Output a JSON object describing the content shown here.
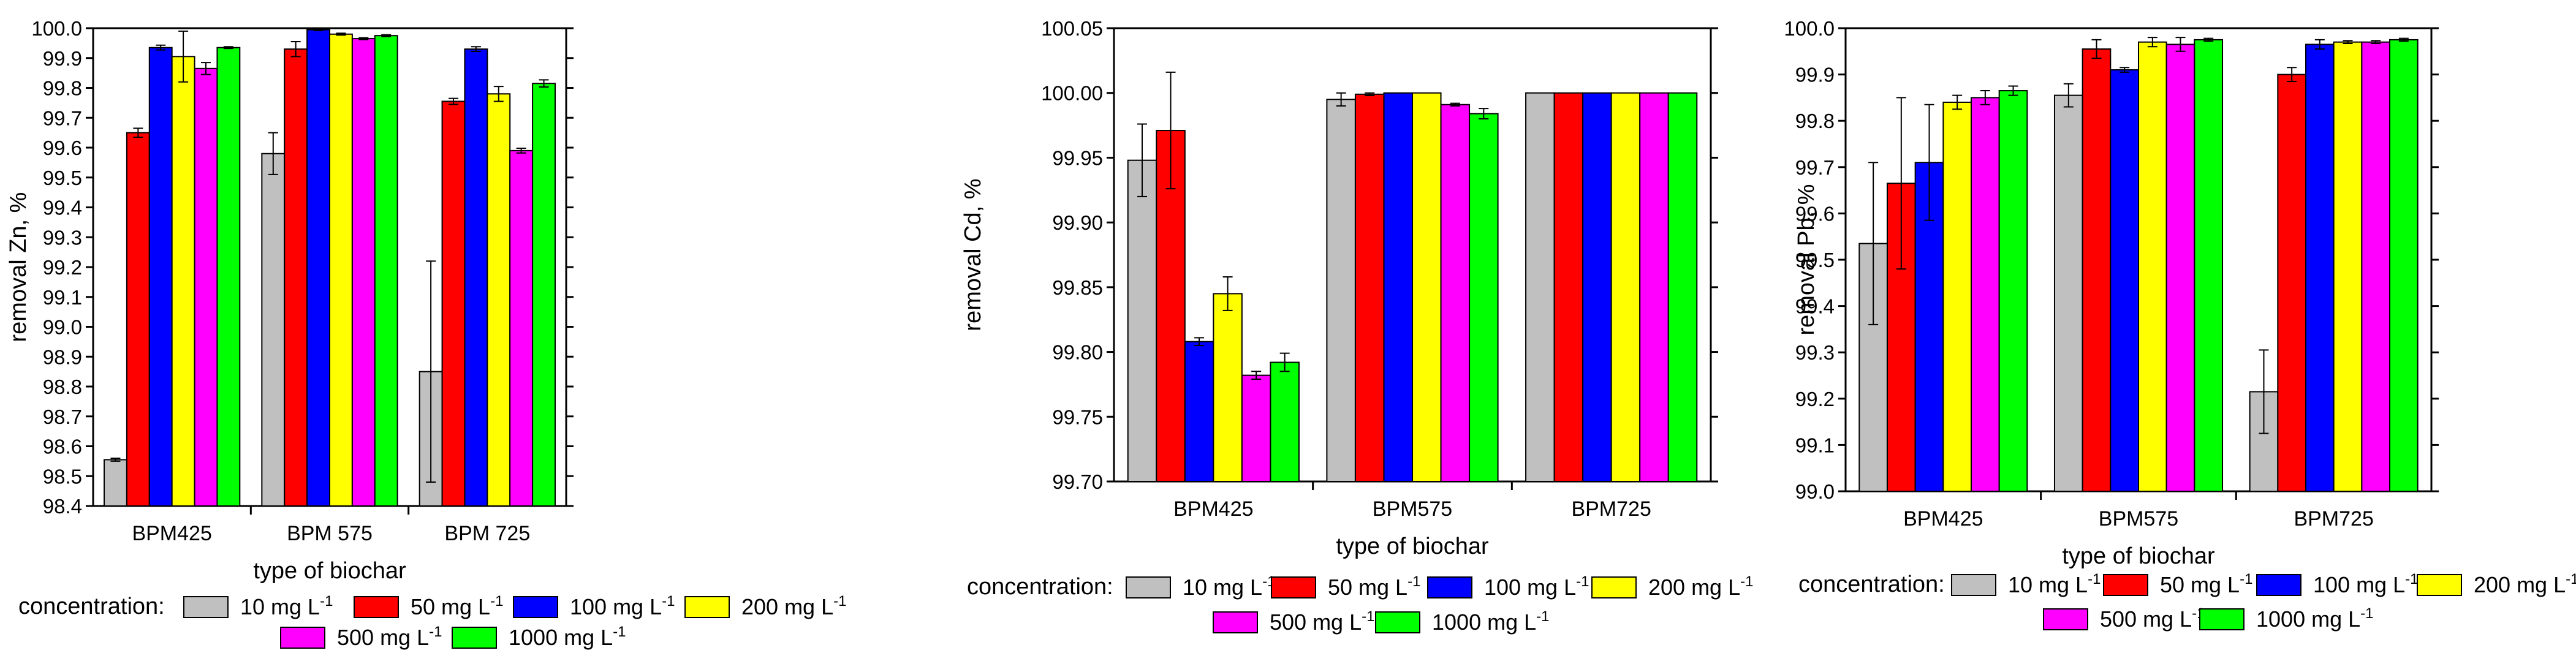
{
  "series_colors": [
    "#c0c0c0",
    "#ff0000",
    "#0000ff",
    "#ffff00",
    "#ff00ff",
    "#00ff00"
  ],
  "chart_data": [
    {
      "type": "bar",
      "title": "",
      "xlabel": "type of biochar",
      "ylabel": "removal  Zn, %",
      "ylim": [
        98.4,
        100.0
      ],
      "yticks": [
        "98.4",
        "98.5",
        "98.6",
        "98.7",
        "98.8",
        "98.9",
        "99.0",
        "99.1",
        "99.2",
        "99.3",
        "99.4",
        "99.5",
        "99.6",
        "99.7",
        "99.8",
        "99.9",
        "100.0"
      ],
      "categories": [
        "BPM425",
        "BPM 575",
        "BPM 725"
      ],
      "legend": {
        "title": "concentration:",
        "placement": "bottom"
      },
      "series": [
        {
          "name": "10 mg L",
          "values": [
            98.555,
            99.58,
            98.85
          ],
          "errors": [
            0.005,
            0.07,
            0.37
          ]
        },
        {
          "name": "50 mg L",
          "values": [
            99.65,
            99.93,
            99.755
          ],
          "errors": [
            0.015,
            0.025,
            0.01
          ]
        },
        {
          "name": "100 mg L",
          "values": [
            99.935,
            99.995,
            99.93
          ],
          "errors": [
            0.008,
            0.003,
            0.008
          ]
        },
        {
          "name": "200 mg L",
          "values": [
            99.905,
            99.98,
            99.78
          ],
          "errors": [
            0.085,
            0.003,
            0.025
          ]
        },
        {
          "name": "500 mg L",
          "values": [
            99.865,
            99.965,
            99.59
          ],
          "errors": [
            0.02,
            0.003,
            0.008
          ]
        },
        {
          "name": "1000 mg L",
          "values": [
            99.935,
            99.975,
            99.815
          ],
          "errors": [
            0.003,
            0.003,
            0.012
          ]
        }
      ]
    },
    {
      "type": "bar",
      "title": "",
      "xlabel": "type of biochar",
      "ylabel": "removal  Cd, %",
      "ylim": [
        99.7,
        100.05
      ],
      "yticks": [
        "99.70",
        "99.75",
        "99.80",
        "99.85",
        "99.90",
        "99.95",
        "100.00",
        "100.05"
      ],
      "categories": [
        "BPM425",
        "BPM575",
        "BPM725"
      ],
      "legend": {
        "title": "concentration:",
        "placement": "bottom"
      },
      "series": [
        {
          "name": "10 mg L",
          "values": [
            99.948,
            99.995,
            100.0
          ],
          "errors": [
            0.028,
            0.005,
            0.0
          ]
        },
        {
          "name": "50 mg L",
          "values": [
            99.971,
            99.999,
            100.0
          ],
          "errors": [
            0.045,
            0.001,
            0.0
          ]
        },
        {
          "name": "100 mg L",
          "values": [
            99.808,
            100.0,
            100.0
          ],
          "errors": [
            0.003,
            0.0,
            0.0
          ]
        },
        {
          "name": "200 mg L",
          "values": [
            99.845,
            100.0,
            100.0
          ],
          "errors": [
            0.013,
            0.0,
            0.0
          ]
        },
        {
          "name": "500 mg L",
          "values": [
            99.782,
            99.991,
            100.0
          ],
          "errors": [
            0.003,
            0.001,
            0.0
          ]
        },
        {
          "name": "1000 mg L",
          "values": [
            99.792,
            99.984,
            100.0
          ],
          "errors": [
            0.007,
            0.004,
            0.0
          ]
        }
      ]
    },
    {
      "type": "bar",
      "title": "",
      "xlabel": "type of biochar",
      "ylabel": "removal  Pb, %",
      "ylim": [
        99.0,
        100.0
      ],
      "yticks": [
        "99.0",
        "99.1",
        "99.2",
        "99.3",
        "99.4",
        "99.5",
        "99.6",
        "99.7",
        "99.8",
        "99.9",
        "100.0"
      ],
      "categories": [
        "BPM425",
        "BPM575",
        "BPM725"
      ],
      "legend": {
        "title": "concentration:",
        "placement": "bottom"
      },
      "series": [
        {
          "name": "10 mg L",
          "values": [
            99.535,
            99.855,
            99.215
          ],
          "errors": [
            0.175,
            0.025,
            0.09
          ]
        },
        {
          "name": "50 mg L",
          "values": [
            99.665,
            99.955,
            99.9
          ],
          "errors": [
            0.185,
            0.02,
            0.015
          ]
        },
        {
          "name": "100 mg L",
          "values": [
            99.71,
            99.91,
            99.965
          ],
          "errors": [
            0.125,
            0.005,
            0.01
          ]
        },
        {
          "name": "200 mg L",
          "values": [
            99.84,
            99.97,
            99.97
          ],
          "errors": [
            0.015,
            0.01,
            0.003
          ]
        },
        {
          "name": "500 mg L",
          "values": [
            99.85,
            99.965,
            99.97
          ],
          "errors": [
            0.015,
            0.015,
            0.003
          ]
        },
        {
          "name": "1000 mg L",
          "values": [
            99.865,
            99.975,
            99.975
          ],
          "errors": [
            0.01,
            0.003,
            0.003
          ]
        }
      ]
    }
  ]
}
